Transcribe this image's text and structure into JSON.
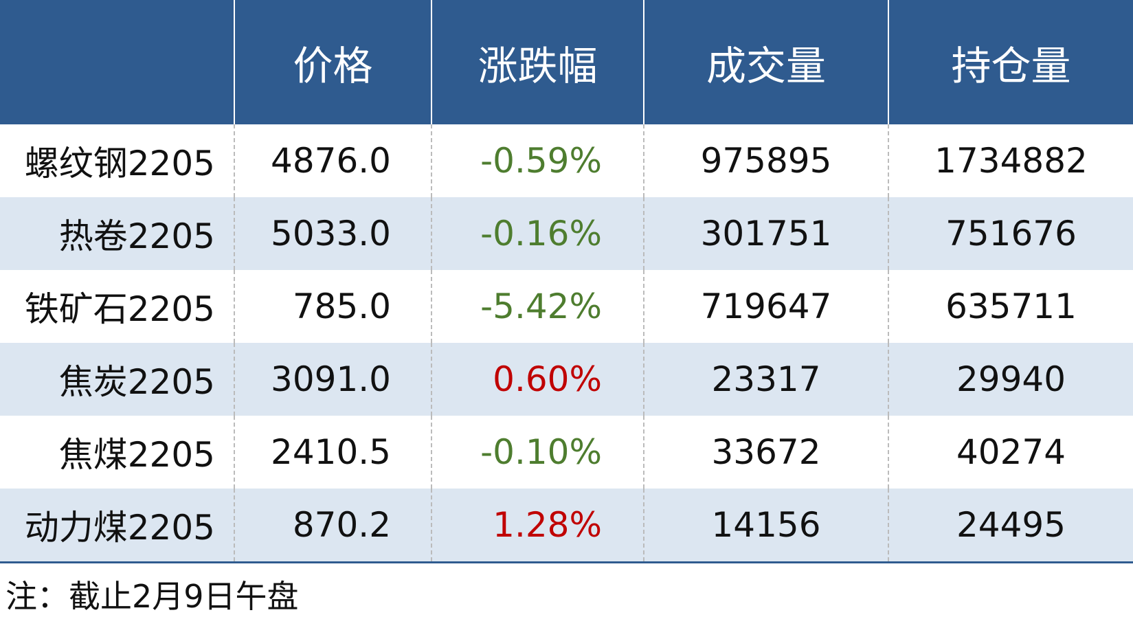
{
  "table": {
    "header": [
      "价格",
      "涨跌幅",
      "成交量",
      "持仓量"
    ],
    "rows": [
      [
        "螺纹钢2205",
        "4876.0",
        "-0.59%",
        "975895",
        "1734882"
      ],
      [
        "热卷2205",
        "5033.0",
        "-0.16%",
        "301751",
        "751676"
      ],
      [
        "铁矿石2205",
        "785.0",
        "-5.42%",
        "719647",
        "635711"
      ],
      [
        "焦炭2205",
        "3091.0",
        "0.60%",
        "23317",
        "29940"
      ],
      [
        "焦煤2205",
        "2410.5",
        "-0.10%",
        "33672",
        "40274"
      ],
      [
        "动力煤2205",
        "870.2",
        "1.28%",
        "14156",
        "24495"
      ]
    ]
  },
  "note": "注：截止2月9日午盘"
}
